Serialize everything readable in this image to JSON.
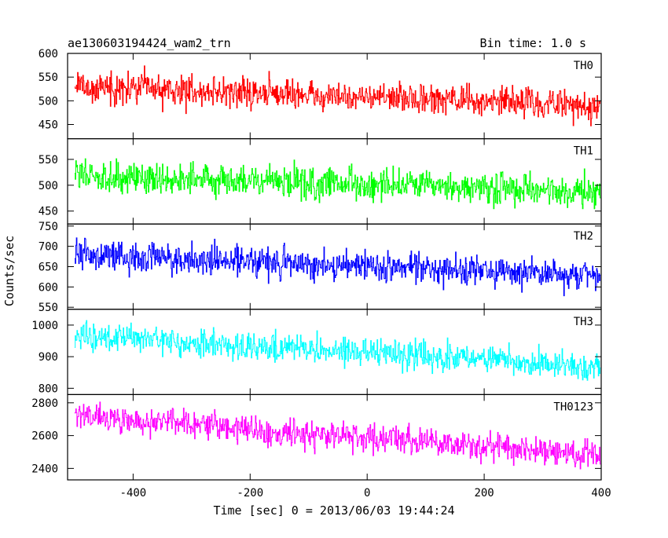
{
  "header": {
    "title": "ae130603194424_wam2_trn",
    "bin_time": "Bin time: 1.0 s"
  },
  "chart_data": {
    "type": "line",
    "xlabel": "Time [sec] 0 = 2013/06/03 19:44:24",
    "ylabel": "Counts/sec",
    "xlim": [
      -512,
      400
    ],
    "x_ticks": [
      -400,
      -200,
      0,
      200,
      400
    ],
    "x_step": 1.0,
    "panels": [
      {
        "name": "TH0",
        "color": "#ff0000",
        "ylim": [
          420,
          600
        ],
        "y_ticks": [
          450,
          500,
          550,
          600
        ],
        "trend": {
          "start": 530,
          "end": 490
        },
        "noise_amplitude": 22
      },
      {
        "name": "TH1",
        "color": "#00ff00",
        "ylim": [
          425,
          590
        ],
        "y_ticks": [
          450,
          500,
          550
        ],
        "trend": {
          "start": 520,
          "end": 485
        },
        "noise_amplitude": 22
      },
      {
        "name": "TH2",
        "color": "#0000ff",
        "ylim": [
          545,
          755
        ],
        "y_ticks": [
          550,
          600,
          650,
          700,
          750
        ],
        "trend": {
          "start": 680,
          "end": 628
        },
        "noise_amplitude": 26
      },
      {
        "name": "TH3",
        "color": "#00ffff",
        "ylim": [
          780,
          1050
        ],
        "y_ticks": [
          800,
          900,
          1000
        ],
        "trend": {
          "start": 965,
          "end": 870
        },
        "noise_amplitude": 30
      },
      {
        "name": "TH0123",
        "color": "#ff00ff",
        "ylim": [
          2330,
          2850
        ],
        "y_ticks": [
          2400,
          2600,
          2800
        ],
        "trend": {
          "start": 2720,
          "end": 2480
        },
        "noise_amplitude": 60
      }
    ]
  }
}
